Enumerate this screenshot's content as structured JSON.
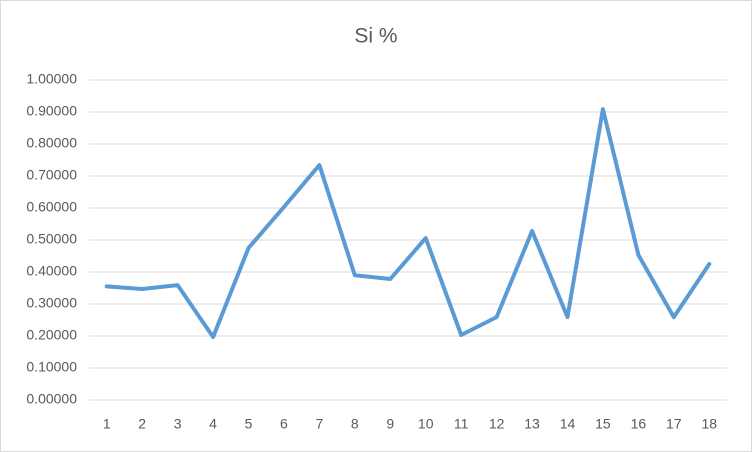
{
  "chart_data": {
    "type": "line",
    "title": "Si %",
    "categories": [
      "1",
      "2",
      "3",
      "4",
      "5",
      "6",
      "7",
      "8",
      "9",
      "10",
      "11",
      "12",
      "13",
      "14",
      "15",
      "16",
      "17",
      "18"
    ],
    "values": [
      0.355,
      0.347,
      0.359,
      0.197,
      0.475,
      0.603,
      0.734,
      0.39,
      0.378,
      0.506,
      0.203,
      0.259,
      0.528,
      0.259,
      0.909,
      0.453,
      0.259,
      0.425
    ],
    "color": "#5b9bd5",
    "ylim": [
      0,
      1
    ],
    "yticks": [
      {
        "value": 0,
        "label": "0.00000"
      },
      {
        "value": 0.1,
        "label": "0.10000"
      },
      {
        "value": 0.2,
        "label": "0.20000"
      },
      {
        "value": 0.3,
        "label": "0.30000"
      },
      {
        "value": 0.4,
        "label": "0.40000"
      },
      {
        "value": 0.5,
        "label": "0.50000"
      },
      {
        "value": 0.6,
        "label": "0.60000"
      },
      {
        "value": 0.7,
        "label": "0.70000"
      },
      {
        "value": 0.8,
        "label": "0.80000"
      },
      {
        "value": 0.9,
        "label": "0.90000"
      },
      {
        "value": 1,
        "label": "1.00000"
      }
    ],
    "grid": true
  }
}
